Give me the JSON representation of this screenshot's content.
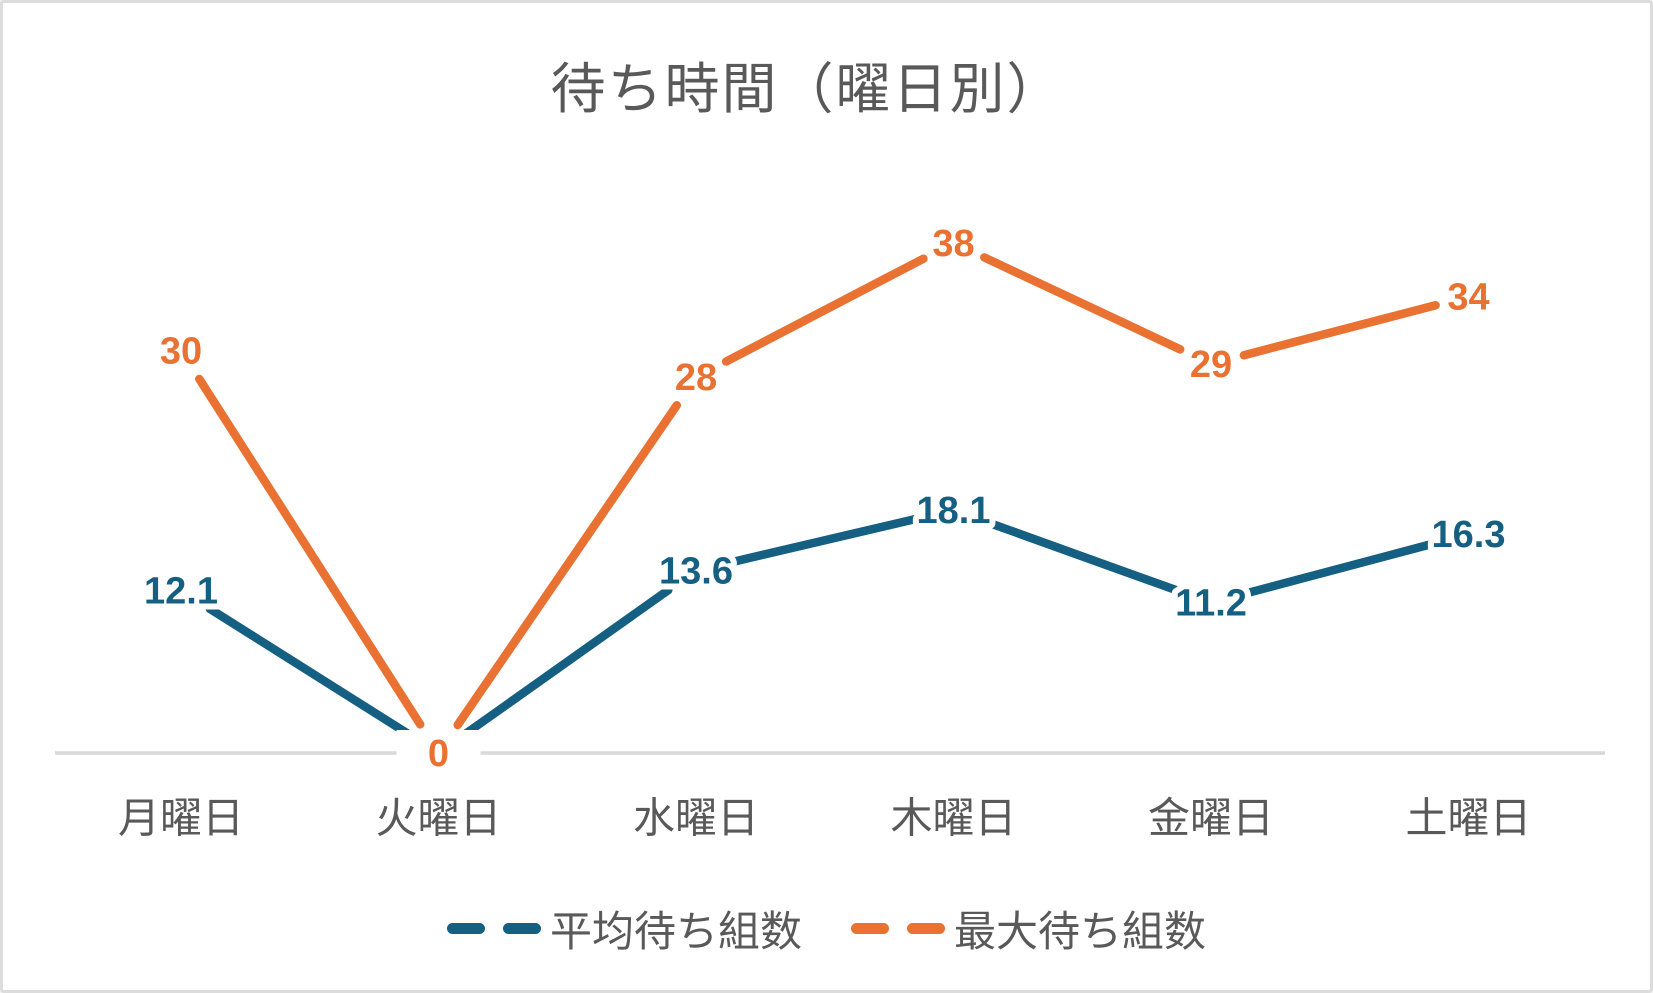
{
  "title": "待ち時間（曜日別）",
  "chart_data": {
    "type": "line",
    "title": "待ち時間（曜日別）",
    "categories": [
      "月曜日",
      "火曜日",
      "水曜日",
      "木曜日",
      "金曜日",
      "土曜日"
    ],
    "series": [
      {
        "name": "平均待ち組数",
        "color": "#156082",
        "values": [
          12.1,
          0,
          13.6,
          18.1,
          11.2,
          16.3
        ]
      },
      {
        "name": "最大待ち組数",
        "color": "#E97132",
        "values": [
          30,
          0,
          28,
          38,
          29,
          34
        ]
      }
    ],
    "ylim": [
      0,
      38
    ],
    "y_axis": "hidden",
    "gridlines": "off",
    "x_axis_line_color": "#D9D9D9",
    "data_labels": "centered-on-points",
    "label_color_follows_series": true,
    "legend_position": "bottom",
    "text_color": "#595959",
    "background": "#FFFFFF"
  },
  "legend": {
    "items": [
      {
        "label": "平均待ち組数",
        "color": "#156082"
      },
      {
        "label": "最大待ち組数",
        "color": "#E97132"
      }
    ]
  }
}
